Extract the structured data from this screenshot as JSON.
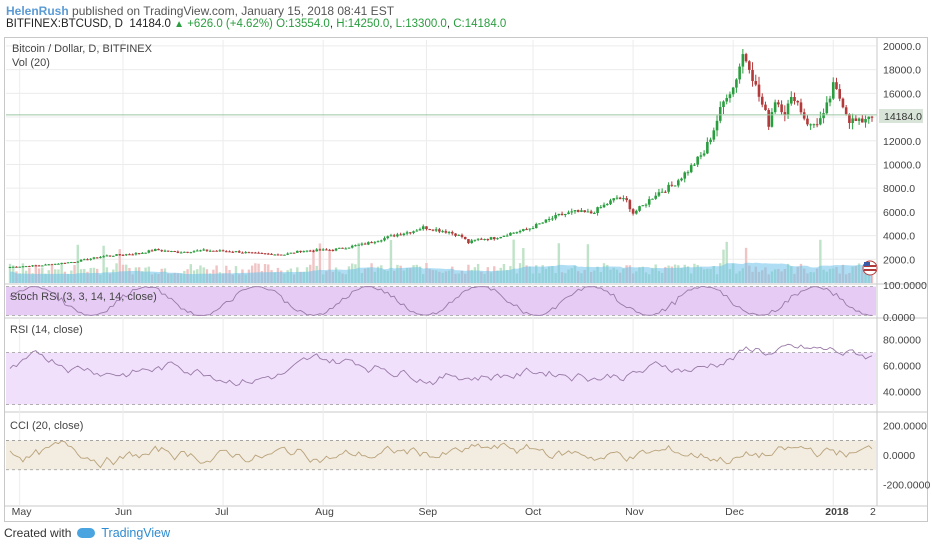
{
  "header": {
    "user": "HelenRush",
    "published": "published on TradingView.com, January 15, 2018 08:41 EST",
    "symbol": "BITFINEX:BTCUSD, D",
    "last": "14184.0",
    "change": "+626.0 (+4.62%)",
    "open": "O:13554.0",
    "high": "H:14250.0",
    "low": "L:13300.0",
    "close": "C:14184.0"
  },
  "panes": {
    "main_title": "Bitcoin / Dollar, D, BITFINEX",
    "vol_label": "Vol (20)",
    "stoch_label": "Stoch RSI (3, 3, 14, 14, close)",
    "rsi_label": "RSI (14, close)",
    "cci_label": "CCI (20, close)",
    "last_price_tag": "14184.0"
  },
  "footer": {
    "created_with": "Created with",
    "brand": "TradingView"
  },
  "colors": {
    "up": "#2a9d3f",
    "down": "#b23a3a",
    "volume_ma": "#6ec1ea",
    "stoch_band": "#e6ccf5",
    "rsi_band": "#f0e0fb",
    "cci_band": "#f3ece0",
    "grid": "#ececec"
  },
  "chart_data": [
    {
      "type": "candlestick",
      "title": "Bitcoin / Dollar, D, BITFINEX",
      "x_ticks": [
        "May",
        "Jun",
        "Jul",
        "Aug",
        "Sep",
        "Oct",
        "Nov",
        "Dec",
        "2018",
        "2"
      ],
      "y_ticks": [
        "20000.0",
        "18000.0",
        "16000.0",
        "14000.0",
        "12000.0",
        "10000.0",
        "8000.0",
        "6000.0",
        "4000.0",
        "2000.0"
      ],
      "ylim": [
        0,
        20500
      ],
      "series": [
        {
          "name": "close",
          "anchor_values": [
            [
              0,
              1350
            ],
            [
              10,
              1500
            ],
            [
              20,
              1800
            ],
            [
              30,
              2300
            ],
            [
              40,
              2500
            ],
            [
              45,
              2800
            ],
            [
              52,
              2600
            ],
            [
              60,
              2750
            ],
            [
              70,
              2650
            ],
            [
              75,
              2500
            ],
            [
              85,
              2400
            ],
            [
              90,
              2700
            ],
            [
              100,
              2800
            ],
            [
              110,
              3300
            ],
            [
              120,
              4100
            ],
            [
              125,
              4400
            ],
            [
              128,
              4700
            ],
            [
              132,
              4500
            ],
            [
              136,
              4300
            ],
            [
              140,
              3900
            ],
            [
              142,
              3400
            ],
            [
              145,
              3700
            ],
            [
              150,
              3800
            ],
            [
              155,
              4200
            ],
            [
              160,
              4500
            ],
            [
              165,
              5100
            ],
            [
              170,
              5700
            ],
            [
              175,
              6000
            ],
            [
              180,
              5900
            ],
            [
              185,
              6700
            ],
            [
              188,
              7200
            ],
            [
              191,
              6900
            ],
            [
              193,
              5900
            ],
            [
              196,
              6500
            ],
            [
              200,
              7500
            ],
            [
              205,
              8200
            ],
            [
              210,
              9500
            ],
            [
              215,
              11000
            ],
            [
              218,
              13000
            ],
            [
              222,
              16000
            ],
            [
              224,
              16500
            ],
            [
              227,
              19300
            ],
            [
              229,
              18500
            ],
            [
              231,
              16500
            ],
            [
              233,
              15000
            ],
            [
              235,
              13500
            ],
            [
              237,
              15500
            ],
            [
              240,
              14500
            ],
            [
              243,
              15800
            ],
            [
              246,
              14000
            ],
            [
              248,
              13200
            ],
            [
              252,
              14000
            ],
            [
              255,
              16500
            ],
            [
              258,
              15200
            ],
            [
              260,
              13800
            ],
            [
              263,
              13500
            ],
            [
              266,
              14184
            ]
          ]
        }
      ]
    },
    {
      "type": "bar",
      "title": "Vol (20)",
      "values": "volume bars with 20-period moving average area"
    },
    {
      "type": "line",
      "title": "Stoch RSI (3, 3, 14, 14, close)",
      "y_ticks": [
        "100.0000",
        "0.0000"
      ],
      "ylim": [
        0,
        100
      ]
    },
    {
      "type": "line",
      "title": "RSI (14, close)",
      "y_ticks": [
        "80.0000",
        "60.0000",
        "40.0000"
      ],
      "ylim": [
        25,
        95
      ]
    },
    {
      "type": "line",
      "title": "CCI (20, close)",
      "y_ticks": [
        "200.0000",
        "0.0000",
        "-200.0000"
      ],
      "ylim": [
        -340,
        280
      ]
    }
  ]
}
